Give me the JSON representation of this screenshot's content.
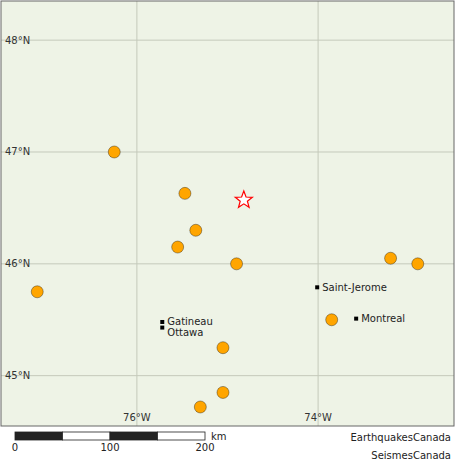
{
  "chart_data": {
    "type": "scatter",
    "xlim": [
      -77.5,
      -72.5
    ],
    "ylim": [
      44.55,
      48.35
    ],
    "xticks": [
      {
        "value": -76,
        "label": "76°W"
      },
      {
        "value": -74,
        "label": "74°W"
      }
    ],
    "yticks": [
      {
        "value": 45,
        "label": "45°N"
      },
      {
        "value": 46,
        "label": "46°N"
      },
      {
        "value": 47,
        "label": "47°N"
      },
      {
        "value": 48,
        "label": "48°N"
      }
    ],
    "grid": true,
    "tick_labels": true,
    "series": [
      {
        "color": "#FFA500",
        "marker": "circle",
        "x": [
          -76.25,
          -75.47,
          -75.35,
          -75.55,
          -77.1,
          -74.9,
          -75.05,
          -73.2,
          -72.9,
          -73.85,
          -75.05,
          -75.3
        ],
        "values": [
          47.0,
          46.63,
          46.3,
          46.15,
          45.75,
          46.0,
          45.25,
          46.05,
          46.0,
          45.5,
          44.85,
          44.72
        ]
      },
      {
        "color": "#ff0000",
        "marker": "star",
        "x": [
          -74.82
        ],
        "values": [
          46.57
        ]
      },
      {
        "color": "#000000",
        "marker": "square",
        "x": [
          -75.72,
          -75.72,
          -74.01,
          -73.58
        ],
        "values": [
          45.48,
          45.43,
          45.79,
          45.51
        ],
        "labels": [
          "Gatineau",
          "Ottawa",
          "Saint-Jerome",
          "Montreal"
        ]
      }
    ],
    "scale_bar": {
      "ticks": [
        0,
        100,
        200
      ],
      "unit": "km"
    },
    "annotations": [
      "EarthquakesCanada",
      "SeismesCanada"
    ]
  }
}
